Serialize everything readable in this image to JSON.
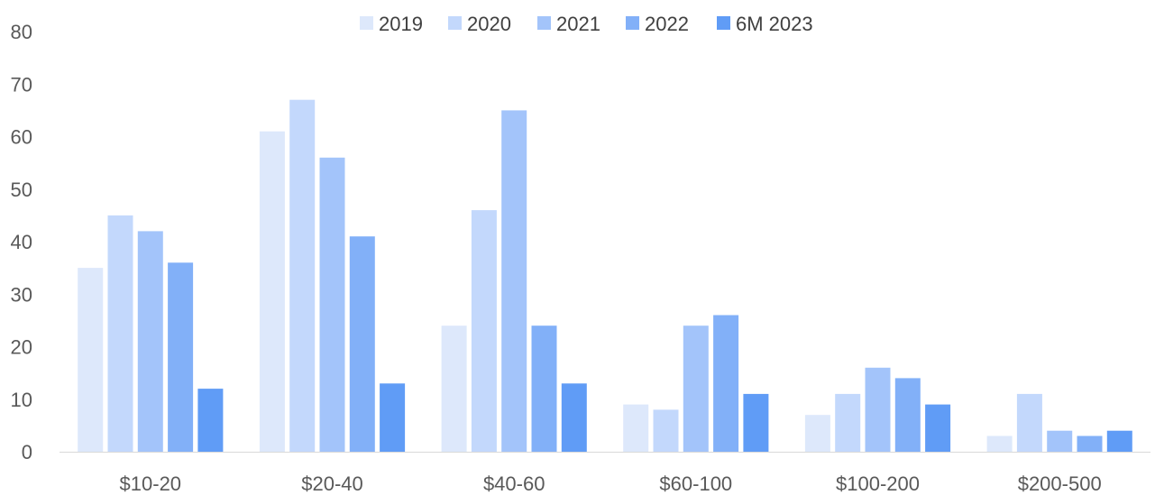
{
  "chart_data": {
    "type": "bar",
    "categories": [
      "$10-20",
      "$20-40",
      "$40-60",
      "$60-100",
      "$100-200",
      "$200-500"
    ],
    "series": [
      {
        "name": "2019",
        "color": "#dde8fb",
        "values": [
          35,
          61,
          24,
          9,
          7,
          3
        ]
      },
      {
        "name": "2020",
        "color": "#c3d8fc",
        "values": [
          45,
          67,
          46,
          8,
          11,
          11
        ]
      },
      {
        "name": "2021",
        "color": "#a3c4fa",
        "values": [
          42,
          56,
          65,
          24,
          16,
          4
        ]
      },
      {
        "name": "2022",
        "color": "#82b0f8",
        "values": [
          36,
          41,
          24,
          26,
          14,
          3
        ]
      },
      {
        "name": "6M 2023",
        "color": "#609cf6",
        "values": [
          12,
          13,
          13,
          11,
          9,
          4
        ]
      }
    ],
    "ylim": [
      0,
      80
    ],
    "yticks": [
      "0",
      "10",
      "20",
      "30",
      "40",
      "50",
      "60",
      "70",
      "80"
    ],
    "legend_position": "top",
    "grid": false
  }
}
